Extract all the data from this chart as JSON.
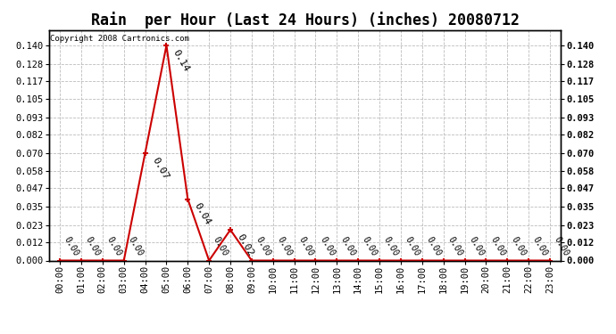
{
  "title": "Rain  per Hour (Last 24 Hours) (inches) 20080712",
  "copyright": "Copyright 2008 Cartronics.com",
  "hours": [
    "00:00",
    "01:00",
    "02:00",
    "03:00",
    "04:00",
    "05:00",
    "06:00",
    "07:00",
    "08:00",
    "09:00",
    "10:00",
    "11:00",
    "12:00",
    "13:00",
    "14:00",
    "15:00",
    "16:00",
    "17:00",
    "18:00",
    "19:00",
    "20:00",
    "21:00",
    "22:00",
    "23:00"
  ],
  "values": [
    0.0,
    0.0,
    0.0,
    0.0,
    0.07,
    0.14,
    0.04,
    0.0,
    0.02,
    0.0,
    0.0,
    0.0,
    0.0,
    0.0,
    0.0,
    0.0,
    0.0,
    0.0,
    0.0,
    0.0,
    0.0,
    0.0,
    0.0,
    0.0
  ],
  "point_labels": {
    "4": "0.07",
    "5": "0.14",
    "6": "0.04",
    "8": "0.02"
  },
  "zero_label_indices": [
    0,
    1,
    2,
    3,
    7,
    9,
    10,
    11,
    12,
    13,
    14,
    15,
    16,
    17,
    18,
    19,
    20,
    21,
    22,
    23
  ],
  "line_color": "#cc0000",
  "marker_color": "#cc0000",
  "grid_color": "#bbbbbb",
  "background_color": "#ffffff",
  "ylim": [
    0.0,
    0.15
  ],
  "yticks": [
    0.0,
    0.012,
    0.023,
    0.035,
    0.047,
    0.058,
    0.07,
    0.082,
    0.093,
    0.105,
    0.117,
    0.128,
    0.14
  ],
  "title_fontsize": 12,
  "tick_fontsize": 7.5,
  "copyright_fontsize": 6.5,
  "value_label_fontsize": 8
}
